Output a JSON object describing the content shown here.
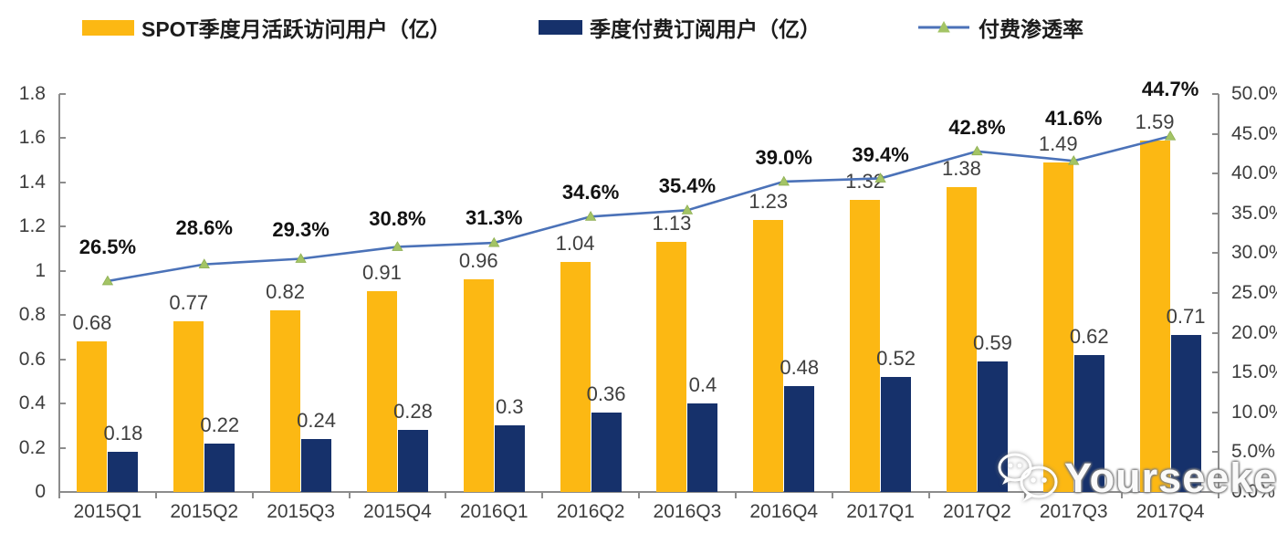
{
  "legend": {
    "items": [
      {
        "label": "SPOT季度月活跃访问用户（亿）",
        "type": "bar",
        "swatch_color": "#FCB813"
      },
      {
        "label": "季度付费订阅用户（亿）",
        "type": "bar",
        "swatch_color": "#16316B"
      },
      {
        "label": "付费渗透率",
        "type": "line",
        "line_color": "#4B72B8",
        "marker_color": "#A3C465"
      }
    ]
  },
  "watermark": {
    "text": "Yourseeker",
    "icon": "wechat-chat-bubbles"
  },
  "chart_data": {
    "type": "bar+line",
    "categories": [
      "2015Q1",
      "2015Q2",
      "2015Q3",
      "2015Q4",
      "2016Q1",
      "2016Q2",
      "2016Q3",
      "2016Q4",
      "2017Q1",
      "2017Q2",
      "2017Q3",
      "2017Q4"
    ],
    "series": [
      {
        "name": "SPOT季度月活跃访问用户（亿）",
        "type": "bar",
        "axis": "left",
        "color": "#FCB813",
        "values": [
          0.68,
          0.77,
          0.82,
          0.91,
          0.96,
          1.04,
          1.13,
          1.23,
          1.32,
          1.38,
          1.49,
          1.59
        ],
        "labels": [
          "0.68",
          "0.77",
          "0.82",
          "0.91",
          "0.96",
          "1.04",
          "1.13",
          "1.23",
          "1.32",
          "1.38",
          "1.49",
          "1.59"
        ]
      },
      {
        "name": "季度付费订阅用户（亿）",
        "type": "bar",
        "axis": "left",
        "color": "#16316B",
        "values": [
          0.18,
          0.22,
          0.24,
          0.28,
          0.3,
          0.36,
          0.4,
          0.48,
          0.52,
          0.59,
          0.62,
          0.71
        ],
        "labels": [
          "0.18",
          "0.22",
          "0.24",
          "0.28",
          "0.3",
          "0.36",
          "0.4",
          "0.48",
          "0.52",
          "0.59",
          "0.62",
          "0.71"
        ]
      },
      {
        "name": "付费渗透率",
        "type": "line",
        "axis": "right",
        "color": "#4B72B8",
        "marker_color": "#A3C465",
        "marker_edge": "#8FAF53",
        "values": [
          26.5,
          28.6,
          29.3,
          30.8,
          31.3,
          34.6,
          35.4,
          39.0,
          39.4,
          42.8,
          41.6,
          44.7
        ],
        "labels": [
          "26.5%",
          "28.6%",
          "29.3%",
          "30.8%",
          "31.3%",
          "34.6%",
          "35.4%",
          "39.0%",
          "39.4%",
          "42.8%",
          "41.6%",
          "44.7%"
        ]
      }
    ],
    "left_axis": {
      "min": 0,
      "max": 1.8,
      "tick_labels": [
        "1.8",
        "1.6",
        "1.4",
        "1.2",
        "1",
        "0.8",
        "0.6",
        "0.4",
        "0.2",
        "0"
      ]
    },
    "right_axis": {
      "min": 0,
      "max": 50,
      "tick_labels": [
        "50.0%",
        "45.0%",
        "40.0%",
        "35.0%",
        "30.0%",
        "25.0%",
        "20.0%",
        "15.0%",
        "10.0%",
        "5.0%",
        "0.0%"
      ]
    },
    "layout_hints": {
      "legend_position": "top",
      "grid": false,
      "pct_label_rise": [
        37,
        40,
        32,
        30,
        27,
        26,
        26,
        26,
        25,
        26,
        46,
        51
      ]
    }
  }
}
